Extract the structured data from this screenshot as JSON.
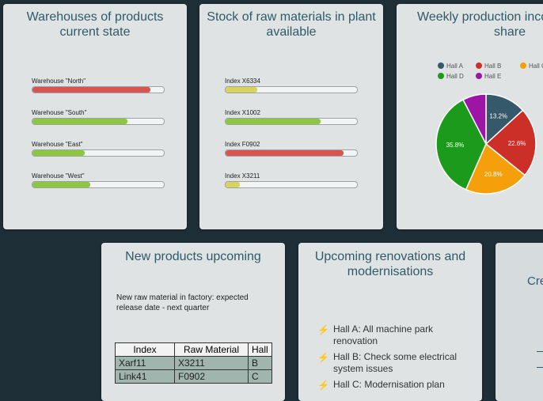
{
  "warehouses": {
    "title_line1": "Warehouses of products",
    "title_line2": "current state",
    "items": [
      {
        "label": "Warehouse \"North\"",
        "level": 0.9,
        "color": "#d9534f"
      },
      {
        "label": "Warehouse \"South\"",
        "level": 0.72,
        "color": "#8dc63f"
      },
      {
        "label": "Warehouse \"East\"",
        "level": 0.4,
        "color": "#8dc63f"
      },
      {
        "label": "Warehouse \"West\"",
        "level": 0.44,
        "color": "#8dc63f"
      }
    ]
  },
  "raw_materials": {
    "title_line1": "Stock of raw materials in plant",
    "title_line2": "available",
    "items": [
      {
        "label": "Index X6334",
        "level": 0.24,
        "color": "#d8d35a"
      },
      {
        "label": "Index X1002",
        "level": 0.72,
        "color": "#8dc63f"
      },
      {
        "label": "Index F0902",
        "level": 0.9,
        "color": "#d9534f"
      },
      {
        "label": "Index X3211",
        "level": 0.11,
        "color": "#d8d35a"
      }
    ]
  },
  "production": {
    "title_line1": "Weekly production inco",
    "title_line2": "share",
    "chart_data": {
      "type": "pie",
      "series": [
        {
          "name": "Hall A",
          "value": 13.2,
          "label": "13.2%",
          "color": "#35586a"
        },
        {
          "name": "Hall B",
          "value": 22.6,
          "label": "22.6%",
          "color": "#cc2f27"
        },
        {
          "name": "Hall C",
          "value": 20.8,
          "label": "20.8%",
          "color": "#f5a00a"
        },
        {
          "name": "Hall D",
          "value": 35.8,
          "label": "35.8%",
          "color": "#1c9a1c"
        },
        {
          "name": "Hall E",
          "value": 7.6,
          "label": "",
          "color": "#9b16a4"
        }
      ],
      "legend_position": "top"
    }
  },
  "new_products": {
    "title": "New products upcoming",
    "notice": "New raw material in factory: expected release date - next quarter",
    "columns": [
      "Index",
      "Raw Material",
      "Hall"
    ],
    "rows": [
      [
        "Xarf11",
        "X3211",
        "B"
      ],
      [
        "Link41",
        "F0902",
        "C"
      ]
    ]
  },
  "renovations": {
    "title_line1": "Upcoming renovations and",
    "title_line2": "modernisations",
    "items": [
      "Hall A: All machine park renovation",
      "Hall B: Check some electrical system issues",
      "Hall C: Modernisation plan"
    ]
  },
  "partial_card": {
    "title_fragment": "Cre"
  }
}
